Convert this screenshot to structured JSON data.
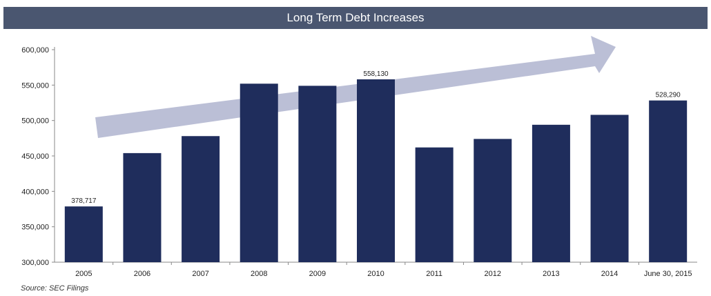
{
  "chart_data": {
    "type": "bar",
    "title": "Long Term Debt Increases",
    "source": "Source: SEC Filings",
    "categories": [
      "2005",
      "2006",
      "2007",
      "2008",
      "2009",
      "2010",
      "2011",
      "2012",
      "2013",
      "2014",
      "June 30, 2015"
    ],
    "values": [
      378717,
      454000,
      478000,
      552000,
      549000,
      558130,
      462000,
      474000,
      494000,
      508000,
      528290
    ],
    "data_labels": [
      "378,717",
      "",
      "",
      "",
      "",
      "558,130",
      "",
      "",
      "",
      "",
      "528,290"
    ],
    "ylim": [
      300000,
      600000
    ],
    "yticks": [
      "300,000",
      "350,000",
      "400,000",
      "450,000",
      "500,000",
      "550,000",
      "600,000"
    ],
    "ytick_values": [
      300000,
      350000,
      400000,
      450000,
      500000,
      550000,
      600000
    ],
    "grid": false,
    "bar_color": "#1f2d5c",
    "arrow_color": "#b4b8d2",
    "annotation": "upward-trend-arrow"
  }
}
